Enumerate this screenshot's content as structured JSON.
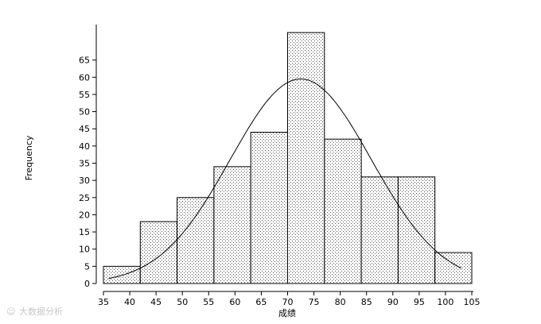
{
  "chart_data": {
    "type": "bar",
    "title": "",
    "xlabel": "成绩",
    "ylabel": "Frequency",
    "x_ticks": [
      35,
      40,
      45,
      50,
      55,
      60,
      65,
      70,
      75,
      80,
      85,
      90,
      95,
      100,
      105
    ],
    "y_ticks": [
      0,
      5,
      10,
      15,
      20,
      25,
      30,
      35,
      40,
      45,
      50,
      55,
      60,
      65
    ],
    "xlim": [
      35,
      105
    ],
    "ylim": [
      0,
      73
    ],
    "bins": [
      {
        "start": 35,
        "end": 42,
        "count": 5
      },
      {
        "start": 42,
        "end": 49,
        "count": 18
      },
      {
        "start": 49,
        "end": 56,
        "count": 25
      },
      {
        "start": 56,
        "end": 63,
        "count": 34
      },
      {
        "start": 63,
        "end": 70,
        "count": 44
      },
      {
        "start": 70,
        "end": 77,
        "count": 73
      },
      {
        "start": 77,
        "end": 84,
        "count": 42
      },
      {
        "start": 84,
        "end": 91,
        "count": 31
      },
      {
        "start": 91,
        "end": 98,
        "count": 31
      },
      {
        "start": 98,
        "end": 105,
        "count": 9
      }
    ],
    "normal_curve": {
      "mean": 72.5,
      "sd": 13.4,
      "peak": 59.5
    },
    "bar_pattern": "dotted",
    "grid": false,
    "legend": "none"
  },
  "watermark": "大数据分析"
}
